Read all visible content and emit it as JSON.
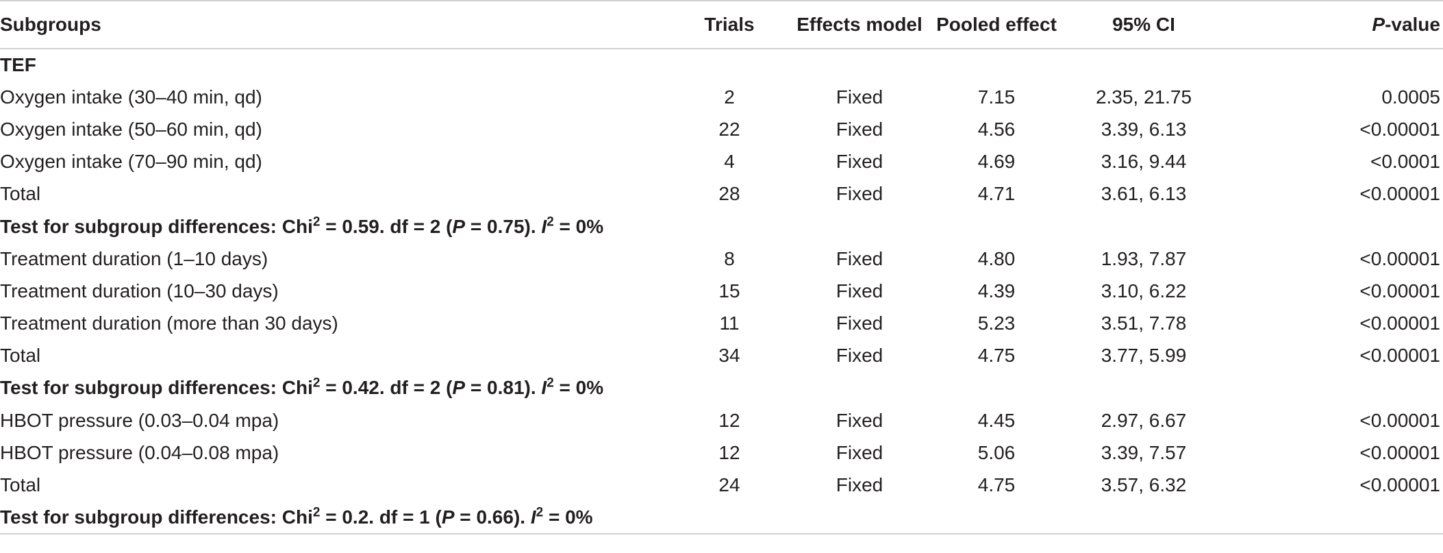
{
  "headers": {
    "subgroups": "Subgroups",
    "trials": "Trials",
    "effects_model": "Effects model",
    "pooled_effect": "Pooled effect",
    "ci": "95% CI",
    "p_value_italic": "P",
    "p_value_rest": "-value"
  },
  "section_title": "TEF",
  "groups": [
    {
      "rows": [
        {
          "label": "Oxygen intake (30–40 min, qd)",
          "trials": "2",
          "model": "Fixed",
          "pooled": "7.15",
          "ci": "2.35, 21.75",
          "p": "0.0005"
        },
        {
          "label": "Oxygen intake (50–60 min, qd)",
          "trials": "22",
          "model": "Fixed",
          "pooled": "4.56",
          "ci": "3.39, 6.13",
          "p": "<0.00001"
        },
        {
          "label": "Oxygen intake (70–90 min, qd)",
          "trials": "4",
          "model": "Fixed",
          "pooled": "4.69",
          "ci": "3.16, 9.44",
          "p": "<0.0001"
        },
        {
          "label": "Total",
          "trials": "28",
          "model": "Fixed",
          "pooled": "4.71",
          "ci": "3.61, 6.13",
          "p": "<0.00001"
        }
      ],
      "test": {
        "prefix": "Test for subgroup differences: Chi",
        "sup1": "2",
        "mid": " = 0.59. df = 2 (",
        "p_letter": "P",
        "p_value": " = 0.75). ",
        "i_letter": "I",
        "sup2": "2",
        "end": " = 0%"
      }
    },
    {
      "rows": [
        {
          "label": "Treatment duration (1–10 days)",
          "trials": "8",
          "model": "Fixed",
          "pooled": "4.80",
          "ci": "1.93, 7.87",
          "p": "<0.00001"
        },
        {
          "label": "Treatment duration (10–30 days)",
          "trials": "15",
          "model": "Fixed",
          "pooled": "4.39",
          "ci": "3.10, 6.22",
          "p": "<0.00001"
        },
        {
          "label": "Treatment duration (more than 30 days)",
          "trials": "11",
          "model": "Fixed",
          "pooled": "5.23",
          "ci": "3.51, 7.78",
          "p": "<0.00001"
        },
        {
          "label": "Total",
          "trials": "34",
          "model": "Fixed",
          "pooled": "4.75",
          "ci": "3.77, 5.99",
          "p": "<0.00001"
        }
      ],
      "test": {
        "prefix": "Test for subgroup differences: Chi",
        "sup1": "2",
        "mid": " = 0.42. df = 2 (",
        "p_letter": "P",
        "p_value": " = 0.81). ",
        "i_letter": "I",
        "sup2": "2",
        "end": " = 0%"
      }
    },
    {
      "rows": [
        {
          "label": "HBOT pressure (0.03–0.04 mpa)",
          "trials": "12",
          "model": "Fixed",
          "pooled": "4.45",
          "ci": "2.97, 6.67",
          "p": "<0.00001"
        },
        {
          "label": "HBOT pressure (0.04–0.08 mpa)",
          "trials": "12",
          "model": "Fixed",
          "pooled": "5.06",
          "ci": "3.39, 7.57",
          "p": "<0.00001"
        },
        {
          "label": "Total",
          "trials": "24",
          "model": "Fixed",
          "pooled": "4.75",
          "ci": "3.57, 6.32",
          "p": "<0.00001"
        }
      ],
      "test": {
        "prefix": "Test for subgroup differences: Chi",
        "sup1": "2",
        "mid": " = 0.2. df = 1 (",
        "p_letter": "P",
        "p_value": " = 0.66). ",
        "i_letter": "I",
        "sup2": "2",
        "end": " = 0%"
      }
    }
  ]
}
